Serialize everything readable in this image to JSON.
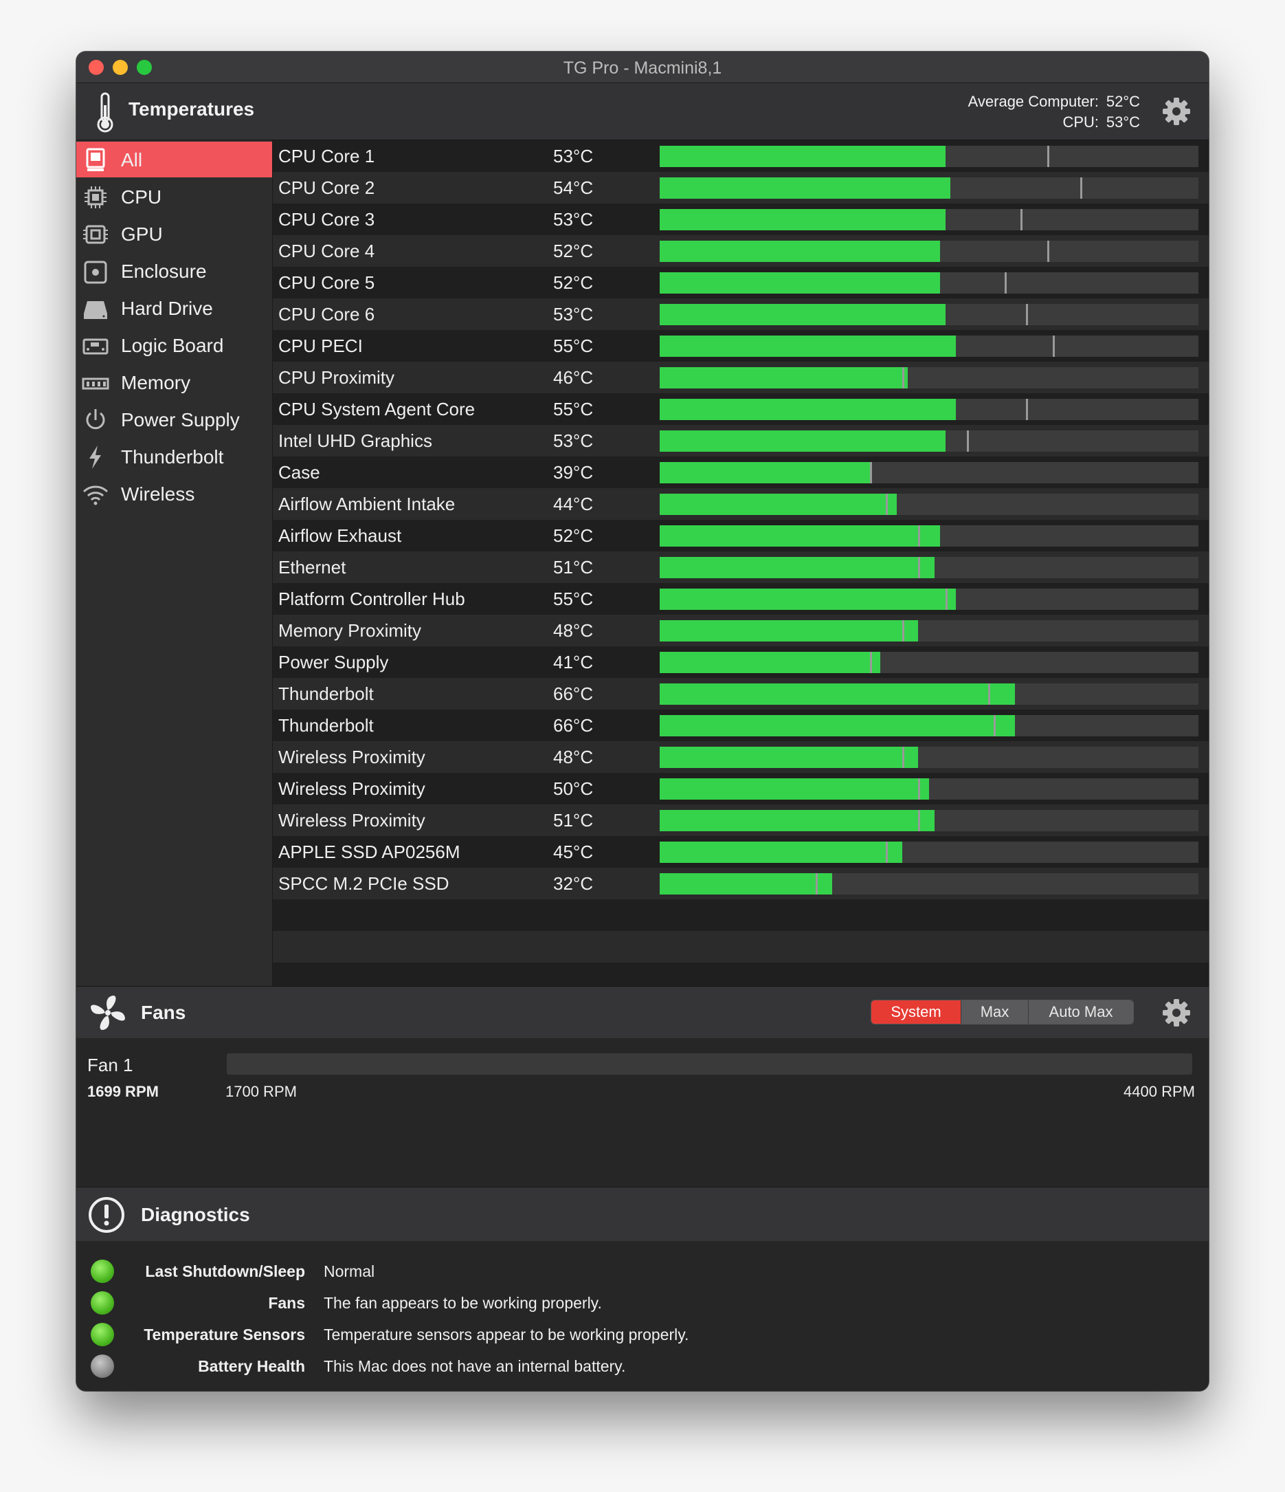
{
  "window": {
    "title": "TG Pro - Macmini8,1"
  },
  "header": {
    "title": "Temperatures",
    "avg_label": "Average Computer:",
    "avg_value": "52°C",
    "cpu_label": "CPU:",
    "cpu_value": "53°C"
  },
  "sidebar": {
    "items": [
      {
        "label": "All",
        "icon": "all-icon"
      },
      {
        "label": "CPU",
        "icon": "cpu-icon"
      },
      {
        "label": "GPU",
        "icon": "gpu-icon"
      },
      {
        "label": "Enclosure",
        "icon": "enclosure-icon"
      },
      {
        "label": "Hard Drive",
        "icon": "hard-drive-icon"
      },
      {
        "label": "Logic Board",
        "icon": "logic-board-icon"
      },
      {
        "label": "Memory",
        "icon": "memory-icon"
      },
      {
        "label": "Power Supply",
        "icon": "power-icon"
      },
      {
        "label": "Thunderbolt",
        "icon": "thunderbolt-icon"
      },
      {
        "label": "Wireless",
        "icon": "wireless-icon"
      }
    ]
  },
  "sensors": [
    {
      "name": "CPU Core 1",
      "temp": "53°C",
      "value": 53,
      "max": 72
    },
    {
      "name": "CPU Core 2",
      "temp": "54°C",
      "value": 54,
      "max": 78
    },
    {
      "name": "CPU Core 3",
      "temp": "53°C",
      "value": 53,
      "max": 67
    },
    {
      "name": "CPU Core 4",
      "temp": "52°C",
      "value": 52,
      "max": 72
    },
    {
      "name": "CPU Core 5",
      "temp": "52°C",
      "value": 52,
      "max": 64
    },
    {
      "name": "CPU Core 6",
      "temp": "53°C",
      "value": 53,
      "max": 68
    },
    {
      "name": "CPU PECI",
      "temp": "55°C",
      "value": 55,
      "max": 73
    },
    {
      "name": "CPU Proximity",
      "temp": "46°C",
      "value": 46,
      "max": 45
    },
    {
      "name": "CPU System Agent Core",
      "temp": "55°C",
      "value": 55,
      "max": 68
    },
    {
      "name": "Intel UHD Graphics",
      "temp": "53°C",
      "value": 53,
      "max": 57
    },
    {
      "name": "Case",
      "temp": "39°C",
      "value": 39,
      "max": 39
    },
    {
      "name": "Airflow Ambient Intake",
      "temp": "44°C",
      "value": 44,
      "max": 42
    },
    {
      "name": "Airflow Exhaust",
      "temp": "52°C",
      "value": 52,
      "max": 48
    },
    {
      "name": "Ethernet",
      "temp": "51°C",
      "value": 51,
      "max": 48
    },
    {
      "name": "Platform Controller Hub",
      "temp": "55°C",
      "value": 55,
      "max": 53
    },
    {
      "name": "Memory Proximity",
      "temp": "48°C",
      "value": 48,
      "max": 45
    },
    {
      "name": "Power Supply",
      "temp": "41°C",
      "value": 41,
      "max": 39
    },
    {
      "name": "Thunderbolt",
      "temp": "66°C",
      "value": 66,
      "max": 61
    },
    {
      "name": "Thunderbolt",
      "temp": "66°C",
      "value": 66,
      "max": 62
    },
    {
      "name": "Wireless Proximity",
      "temp": "48°C",
      "value": 48,
      "max": 45
    },
    {
      "name": "Wireless Proximity",
      "temp": "50°C",
      "value": 50,
      "max": 48
    },
    {
      "name": "Wireless Proximity",
      "temp": "51°C",
      "value": 51,
      "max": 48
    },
    {
      "name": "APPLE SSD AP0256M",
      "temp": "45°C",
      "value": 45,
      "max": 42
    },
    {
      "name": "SPCC M.2 PCIe SSD",
      "temp": "32°C",
      "value": 32,
      "max": 29
    }
  ],
  "scale_max": 100,
  "fans": {
    "title": "Fans",
    "modes": [
      "System",
      "Max",
      "Auto Max"
    ],
    "active_mode": "System",
    "items": [
      {
        "name": "Fan 1",
        "rpm": "1699 RPM",
        "min_label": "1700 RPM",
        "max_label": "4400 RPM"
      }
    ]
  },
  "diagnostics": {
    "title": "Diagnostics",
    "items": [
      {
        "label": "Last Shutdown/Sleep",
        "text": "Normal",
        "status": "green"
      },
      {
        "label": "Fans",
        "text": "The fan appears to be working properly.",
        "status": "green"
      },
      {
        "label": "Temperature Sensors",
        "text": "Temperature sensors appear to be working properly.",
        "status": "green"
      },
      {
        "label": "Battery Health",
        "text": "This Mac does not have an internal battery.",
        "status": "gray"
      }
    ]
  },
  "colors": {
    "accent": "#f2545b",
    "bar": "#35d34b",
    "active_mode": "#e63b33"
  }
}
